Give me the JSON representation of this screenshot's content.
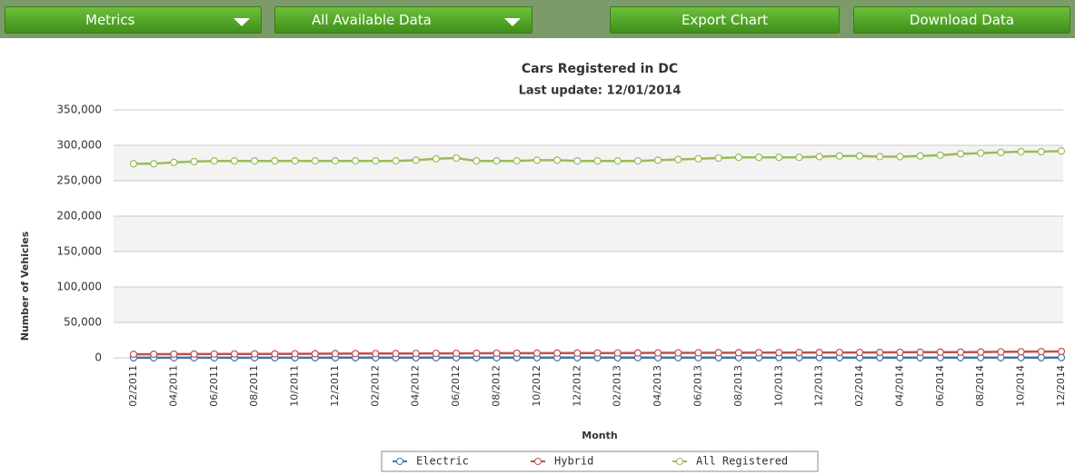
{
  "toolbar": {
    "buttons": [
      "Metrics",
      "All Available Data",
      "Export Chart",
      "Download Data"
    ]
  },
  "chart_data": {
    "type": "line",
    "title": "Cars Registered in DC",
    "subtitle": "Last update: 12/01/2014",
    "x_label": "Month",
    "y_label": "Number of Vehicles",
    "categories": [
      "02/2011",
      null,
      "04/2011",
      null,
      "06/2011",
      null,
      "08/2011",
      null,
      "10/2011",
      null,
      "12/2011",
      null,
      "02/2012",
      null,
      "04/2012",
      null,
      "06/2012",
      null,
      "08/2012",
      null,
      "10/2012",
      null,
      "12/2012",
      null,
      "02/2013",
      null,
      "04/2013",
      null,
      "06/2013",
      null,
      "08/2013",
      null,
      "10/2013",
      null,
      "12/2013",
      null,
      "02/2014",
      null,
      "04/2014",
      null,
      "06/2014",
      null,
      "08/2014",
      null,
      "10/2014",
      null,
      "12/2014"
    ],
    "series": [
      {
        "name": "Electric",
        "color": "#4572a7",
        "values": [
          100,
          110,
          120,
          130,
          140,
          150,
          160,
          170,
          180,
          190,
          200,
          205,
          210,
          215,
          220,
          225,
          230,
          235,
          240,
          245,
          250,
          255,
          260,
          265,
          270,
          275,
          280,
          285,
          290,
          295,
          300,
          305,
          310,
          315,
          320,
          325,
          330,
          335,
          340,
          345,
          350,
          355,
          360,
          365,
          370,
          380,
          390
        ]
      },
      {
        "name": "Hybrid",
        "color": "#c0504d",
        "values": [
          5000,
          5100,
          5200,
          5300,
          5400,
          5500,
          5500,
          5600,
          5700,
          5800,
          5900,
          6000,
          6000,
          6100,
          6200,
          6300,
          6300,
          6400,
          6500,
          6500,
          6600,
          6700,
          6700,
          6800,
          6800,
          6900,
          7000,
          7000,
          7100,
          7200,
          7200,
          7300,
          7400,
          7400,
          7500,
          7600,
          7600,
          7700,
          7800,
          7900,
          8000,
          8100,
          8200,
          8400,
          8600,
          8800,
          9000
        ]
      },
      {
        "name": "All Registered",
        "color": "#9bbb59",
        "values": [
          274000,
          274000,
          276000,
          277000,
          278000,
          278000,
          278000,
          278000,
          278000,
          278000,
          278000,
          278000,
          278000,
          278000,
          279000,
          281000,
          282000,
          278000,
          278000,
          278000,
          279000,
          279000,
          278000,
          278000,
          278000,
          278000,
          279000,
          280000,
          281000,
          282000,
          283000,
          283000,
          283000,
          283000,
          284000,
          285000,
          285000,
          284000,
          284000,
          285000,
          286000,
          288000,
          289000,
          290000,
          291000,
          291000,
          292000
        ]
      }
    ],
    "ylim": [
      0,
      350000
    ],
    "yticks": [
      0,
      {
        "value": 50000,
        "label": "50,000"
      },
      {
        "value": 100000,
        "label": "100,000"
      },
      {
        "value": 150000,
        "label": "150,000"
      },
      {
        "value": 200000,
        "label": "200,000"
      },
      {
        "value": 250000,
        "label": "250,000"
      },
      {
        "value": 300000,
        "label": "300,000"
      },
      {
        "value": 350000,
        "label": "350,000"
      }
    ],
    "grid": true,
    "legend": "bottom"
  }
}
